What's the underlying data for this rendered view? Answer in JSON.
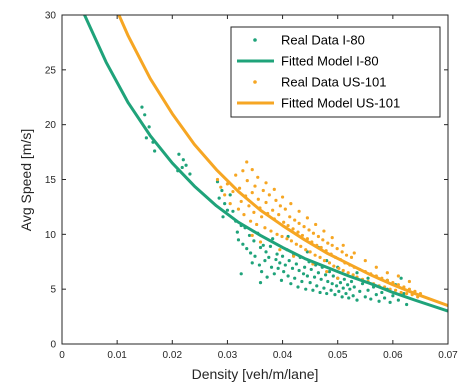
{
  "chart_data": {
    "type": "scatter",
    "xlabel": "Density [veh/m/lane]",
    "ylabel": "Avg Speed [m/s]",
    "xlim": [
      0,
      0.07
    ],
    "ylim": [
      0,
      30
    ],
    "x_ticks": [
      "0",
      "0.01",
      "0.02",
      "0.03",
      "0.04",
      "0.05",
      "0.06",
      "0.07"
    ],
    "y_ticks": [
      "0",
      "5",
      "10",
      "15",
      "20",
      "25",
      "30"
    ],
    "grid": false,
    "legend_position": "top-right",
    "series": [
      {
        "name": "Real Data I-80",
        "kind": "scatter",
        "color": "#1fa37a",
        "points": [
          [
            0.0145,
            21.6
          ],
          [
            0.015,
            20.9
          ],
          [
            0.0158,
            19.8
          ],
          [
            0.0165,
            18.4
          ],
          [
            0.0153,
            18.8
          ],
          [
            0.0168,
            17.6
          ],
          [
            0.0212,
            17.3
          ],
          [
            0.022,
            16.8
          ],
          [
            0.0225,
            16.3
          ],
          [
            0.021,
            15.8
          ],
          [
            0.0232,
            15.5
          ],
          [
            0.0218,
            16.1
          ],
          [
            0.0282,
            14.8
          ],
          [
            0.029,
            14.0
          ],
          [
            0.0285,
            13.3
          ],
          [
            0.0295,
            12.8
          ],
          [
            0.03,
            12.2
          ],
          [
            0.0292,
            11.6
          ],
          [
            0.0305,
            13.6
          ],
          [
            0.031,
            12.1
          ],
          [
            0.0315,
            11.2
          ],
          [
            0.0318,
            10.2
          ],
          [
            0.032,
            9.5
          ],
          [
            0.0325,
            10.8
          ],
          [
            0.0328,
            9.1
          ],
          [
            0.0332,
            10.6
          ],
          [
            0.0335,
            8.7
          ],
          [
            0.034,
            9.9
          ],
          [
            0.0342,
            8.3
          ],
          [
            0.0345,
            7.4
          ],
          [
            0.0348,
            9.4
          ],
          [
            0.035,
            8.0
          ],
          [
            0.0355,
            10.1
          ],
          [
            0.0358,
            7.2
          ],
          [
            0.036,
            8.8
          ],
          [
            0.0362,
            6.6
          ],
          [
            0.0365,
            9.0
          ],
          [
            0.0368,
            7.6
          ],
          [
            0.037,
            8.4
          ],
          [
            0.0372,
            6.1
          ],
          [
            0.0375,
            7.9
          ],
          [
            0.0378,
            8.9
          ],
          [
            0.038,
            7.0
          ],
          [
            0.0382,
            9.6
          ],
          [
            0.0385,
            6.4
          ],
          [
            0.0388,
            7.7
          ],
          [
            0.039,
            8.2
          ],
          [
            0.0392,
            6.9
          ],
          [
            0.0395,
            7.4
          ],
          [
            0.0398,
            5.8
          ],
          [
            0.04,
            8.0
          ],
          [
            0.0402,
            6.6
          ],
          [
            0.0405,
            7.2
          ],
          [
            0.0408,
            8.6
          ],
          [
            0.041,
            6.2
          ],
          [
            0.0412,
            7.6
          ],
          [
            0.0415,
            5.5
          ],
          [
            0.0418,
            6.9
          ],
          [
            0.042,
            8.1
          ],
          [
            0.0422,
            6.0
          ],
          [
            0.0425,
            7.3
          ],
          [
            0.0428,
            5.2
          ],
          [
            0.043,
            6.7
          ],
          [
            0.0432,
            7.9
          ],
          [
            0.0435,
            5.7
          ],
          [
            0.0438,
            6.4
          ],
          [
            0.044,
            7.0
          ],
          [
            0.0442,
            5.0
          ],
          [
            0.0445,
            6.2
          ],
          [
            0.0448,
            7.5
          ],
          [
            0.045,
            5.6
          ],
          [
            0.0452,
            6.8
          ],
          [
            0.0455,
            4.9
          ],
          [
            0.0458,
            6.1
          ],
          [
            0.046,
            7.2
          ],
          [
            0.0462,
            5.3
          ],
          [
            0.0465,
            6.5
          ],
          [
            0.0468,
            4.7
          ],
          [
            0.047,
            5.9
          ],
          [
            0.0472,
            7.0
          ],
          [
            0.0475,
            5.1
          ],
          [
            0.0478,
            6.3
          ],
          [
            0.048,
            4.6
          ],
          [
            0.0482,
            5.7
          ],
          [
            0.0485,
            6.6
          ],
          [
            0.0488,
            4.9
          ],
          [
            0.049,
            5.5
          ],
          [
            0.0492,
            6.2
          ],
          [
            0.0495,
            4.5
          ],
          [
            0.0498,
            5.3
          ],
          [
            0.05,
            6.0
          ],
          [
            0.0502,
            4.8
          ],
          [
            0.0505,
            5.6
          ],
          [
            0.0508,
            4.3
          ],
          [
            0.051,
            5.1
          ],
          [
            0.0512,
            5.9
          ],
          [
            0.0515,
            4.6
          ],
          [
            0.0518,
            5.4
          ],
          [
            0.052,
            4.2
          ],
          [
            0.0522,
            5.0
          ],
          [
            0.0525,
            5.7
          ],
          [
            0.0528,
            4.4
          ],
          [
            0.053,
            5.2
          ],
          [
            0.0535,
            4.0
          ],
          [
            0.054,
            4.8
          ],
          [
            0.0545,
            5.5
          ],
          [
            0.055,
            4.3
          ],
          [
            0.0555,
            4.9
          ],
          [
            0.056,
            4.1
          ],
          [
            0.0565,
            5.2
          ],
          [
            0.057,
            4.5
          ],
          [
            0.0575,
            3.9
          ],
          [
            0.058,
            4.7
          ],
          [
            0.0585,
            4.2
          ],
          [
            0.059,
            5.0
          ],
          [
            0.0595,
            3.8
          ],
          [
            0.06,
            4.4
          ],
          [
            0.0605,
            5.4
          ],
          [
            0.061,
            4.0
          ],
          [
            0.0615,
            6.0
          ],
          [
            0.062,
            4.6
          ],
          [
            0.0625,
            3.6
          ],
          [
            0.0325,
            6.4
          ],
          [
            0.036,
            5.6
          ],
          [
            0.041,
            9.8
          ],
          [
            0.0445,
            8.4
          ],
          [
            0.0465,
            8.8
          ],
          [
            0.048,
            7.6
          ],
          [
            0.05,
            7.0
          ],
          [
            0.0535,
            6.5
          ],
          [
            0.0555,
            6.0
          ],
          [
            0.059,
            5.8
          ]
        ]
      },
      {
        "name": "Fitted Model I-80",
        "kind": "line",
        "color": "#1fa37a",
        "line_width": 3,
        "points": [
          [
            0.0,
            35.5
          ],
          [
            0.004,
            30.1
          ],
          [
            0.008,
            25.7
          ],
          [
            0.012,
            22.0
          ],
          [
            0.016,
            19.0
          ],
          [
            0.02,
            16.5
          ],
          [
            0.024,
            14.4
          ],
          [
            0.028,
            12.6
          ],
          [
            0.032,
            11.1
          ],
          [
            0.036,
            9.9
          ],
          [
            0.04,
            8.8
          ],
          [
            0.044,
            7.8
          ],
          [
            0.048,
            7.0
          ],
          [
            0.052,
            6.2
          ],
          [
            0.056,
            5.5
          ],
          [
            0.06,
            4.7
          ],
          [
            0.064,
            4.0
          ],
          [
            0.07,
            3.0
          ]
        ]
      },
      {
        "name": "Real Data US-101",
        "kind": "scatter",
        "color": "#f6a623",
        "points": [
          [
            0.0282,
            15.0
          ],
          [
            0.0288,
            14.3
          ],
          [
            0.0295,
            13.6
          ],
          [
            0.03,
            14.6
          ],
          [
            0.0305,
            12.8
          ],
          [
            0.031,
            13.9
          ],
          [
            0.0315,
            15.4
          ],
          [
            0.032,
            12.3
          ],
          [
            0.0322,
            14.2
          ],
          [
            0.0325,
            13.0
          ],
          [
            0.0328,
            15.8
          ],
          [
            0.033,
            11.8
          ],
          [
            0.0333,
            13.5
          ],
          [
            0.0336,
            14.9
          ],
          [
            0.0339,
            12.6
          ],
          [
            0.0342,
            11.2
          ],
          [
            0.0345,
            13.8
          ],
          [
            0.0348,
            12.0
          ],
          [
            0.035,
            14.4
          ],
          [
            0.0353,
            10.9
          ],
          [
            0.0356,
            13.2
          ],
          [
            0.0359,
            12.4
          ],
          [
            0.0362,
            11.6
          ],
          [
            0.0365,
            14.0
          ],
          [
            0.0368,
            10.6
          ],
          [
            0.037,
            12.9
          ],
          [
            0.0373,
            11.9
          ],
          [
            0.0376,
            13.6
          ],
          [
            0.0379,
            10.3
          ],
          [
            0.0382,
            12.2
          ],
          [
            0.0385,
            11.4
          ],
          [
            0.0388,
            13.1
          ],
          [
            0.039,
            10.0
          ],
          [
            0.0393,
            11.8
          ],
          [
            0.0396,
            12.6
          ],
          [
            0.0399,
            9.8
          ],
          [
            0.0402,
            11.1
          ],
          [
            0.0405,
            12.3
          ],
          [
            0.0408,
            9.6
          ],
          [
            0.041,
            10.8
          ],
          [
            0.0413,
            11.6
          ],
          [
            0.0416,
            9.4
          ],
          [
            0.0419,
            10.5
          ],
          [
            0.0422,
            11.3
          ],
          [
            0.0425,
            9.1
          ],
          [
            0.0428,
            10.2
          ],
          [
            0.043,
            11.0
          ],
          [
            0.0433,
            8.9
          ],
          [
            0.0436,
            9.9
          ],
          [
            0.0439,
            10.7
          ],
          [
            0.0442,
            8.6
          ],
          [
            0.0445,
            9.6
          ],
          [
            0.0448,
            10.4
          ],
          [
            0.045,
            8.4
          ],
          [
            0.0453,
            9.3
          ],
          [
            0.0456,
            10.1
          ],
          [
            0.0459,
            8.1
          ],
          [
            0.0462,
            9.0
          ],
          [
            0.0465,
            9.8
          ],
          [
            0.0468,
            7.9
          ],
          [
            0.047,
            8.8
          ],
          [
            0.0473,
            9.5
          ],
          [
            0.0476,
            7.6
          ],
          [
            0.0479,
            8.5
          ],
          [
            0.0482,
            9.2
          ],
          [
            0.0485,
            7.4
          ],
          [
            0.0488,
            8.2
          ],
          [
            0.049,
            9.0
          ],
          [
            0.0493,
            7.1
          ],
          [
            0.0496,
            7.9
          ],
          [
            0.0499,
            8.7
          ],
          [
            0.0502,
            6.9
          ],
          [
            0.0505,
            7.7
          ],
          [
            0.0508,
            8.4
          ],
          [
            0.051,
            6.7
          ],
          [
            0.0513,
            7.4
          ],
          [
            0.0516,
            8.1
          ],
          [
            0.0519,
            6.5
          ],
          [
            0.0522,
            7.2
          ],
          [
            0.0525,
            7.9
          ],
          [
            0.0528,
            6.3
          ],
          [
            0.053,
            7.0
          ],
          [
            0.0535,
            6.1
          ],
          [
            0.054,
            6.8
          ],
          [
            0.0545,
            5.9
          ],
          [
            0.055,
            6.6
          ],
          [
            0.0555,
            5.7
          ],
          [
            0.056,
            6.4
          ],
          [
            0.0565,
            5.5
          ],
          [
            0.057,
            6.2
          ],
          [
            0.0575,
            5.3
          ],
          [
            0.058,
            6.0
          ],
          [
            0.0585,
            5.2
          ],
          [
            0.059,
            5.8
          ],
          [
            0.0595,
            5.0
          ],
          [
            0.06,
            5.6
          ],
          [
            0.0605,
            4.9
          ],
          [
            0.061,
            5.4
          ],
          [
            0.0615,
            4.7
          ],
          [
            0.062,
            5.2
          ],
          [
            0.0625,
            4.6
          ],
          [
            0.063,
            5.0
          ],
          [
            0.0635,
            4.5
          ],
          [
            0.064,
            4.8
          ],
          [
            0.0645,
            4.3
          ],
          [
            0.065,
            4.6
          ],
          [
            0.0335,
            16.6
          ],
          [
            0.0345,
            15.9
          ],
          [
            0.0355,
            15.2
          ],
          [
            0.037,
            14.7
          ],
          [
            0.0385,
            14.1
          ],
          [
            0.04,
            13.4
          ],
          [
            0.0415,
            12.8
          ],
          [
            0.043,
            12.1
          ],
          [
            0.0445,
            11.5
          ],
          [
            0.046,
            10.9
          ],
          [
            0.0475,
            10.3
          ],
          [
            0.049,
            9.7
          ],
          [
            0.051,
            9.0
          ],
          [
            0.053,
            8.3
          ],
          [
            0.055,
            7.6
          ],
          [
            0.057,
            7.0
          ],
          [
            0.059,
            6.5
          ],
          [
            0.061,
            6.2
          ],
          [
            0.063,
            5.7
          ],
          [
            0.0345,
            9.9
          ],
          [
            0.036,
            9.3
          ],
          [
            0.0395,
            8.6
          ],
          [
            0.042,
            8.0
          ],
          [
            0.0455,
            7.3
          ],
          [
            0.048,
            6.6
          ],
          [
            0.05,
            6.0
          ]
        ]
      },
      {
        "name": "Fitted Model US-101",
        "kind": "line",
        "color": "#f6a623",
        "line_width": 3,
        "points": [
          [
            0.009,
            31.5
          ],
          [
            0.012,
            28.1
          ],
          [
            0.016,
            24.2
          ],
          [
            0.02,
            21.0
          ],
          [
            0.024,
            18.2
          ],
          [
            0.028,
            15.9
          ],
          [
            0.032,
            13.9
          ],
          [
            0.036,
            12.2
          ],
          [
            0.04,
            10.8
          ],
          [
            0.044,
            9.5
          ],
          [
            0.048,
            8.3
          ],
          [
            0.052,
            7.3
          ],
          [
            0.056,
            6.3
          ],
          [
            0.06,
            5.4
          ],
          [
            0.064,
            4.6
          ],
          [
            0.07,
            3.5
          ]
        ]
      }
    ]
  }
}
